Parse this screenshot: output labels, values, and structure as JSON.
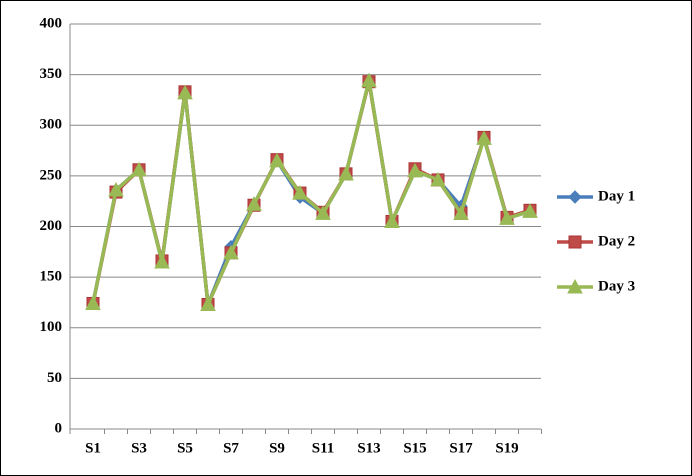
{
  "chart_data": {
    "type": "line",
    "categories": [
      "S1",
      null,
      "S3",
      null,
      "S5",
      null,
      "S7",
      null,
      "S9",
      null,
      "S11",
      null,
      "S13",
      null,
      "S15",
      null,
      "S17",
      null,
      "S19",
      null
    ],
    "series": [
      {
        "name": "Day 1",
        "color": "#4a7ebb",
        "marker": "diamond",
        "values": [
          124,
          236,
          256,
          165,
          332,
          123,
          180,
          222,
          265,
          229,
          213,
          252,
          344,
          205,
          255,
          246,
          220,
          287,
          208,
          215
        ]
      },
      {
        "name": "Day 2",
        "color": "#be4b48",
        "marker": "square",
        "values": [
          124,
          234,
          256,
          166,
          333,
          123,
          174,
          221,
          266,
          233,
          214,
          252,
          343,
          205,
          257,
          246,
          213,
          288,
          209,
          216
        ]
      },
      {
        "name": "Day 3",
        "color": "#98b954",
        "marker": "triangle",
        "values": [
          124,
          236,
          256,
          165,
          332,
          123,
          174,
          222,
          265,
          233,
          213,
          252,
          344,
          205,
          255,
          246,
          213,
          287,
          208,
          215
        ]
      }
    ],
    "ylim": [
      0,
      400
    ],
    "yticks": [
      0,
      50,
      100,
      150,
      200,
      250,
      300,
      350,
      400
    ],
    "grid": true,
    "legend": "right"
  }
}
